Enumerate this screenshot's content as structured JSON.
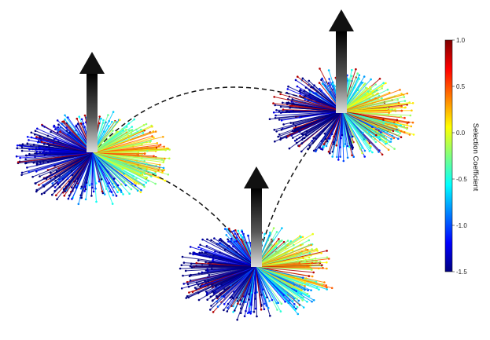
{
  "figure": {
    "clusters": [
      {
        "name": "cluster-left"
      },
      {
        "name": "cluster-top-right"
      },
      {
        "name": "cluster-bottom"
      }
    ],
    "connections": [
      {
        "from": "cluster-left",
        "to": "cluster-top-right"
      },
      {
        "from": "cluster-left",
        "to": "cluster-bottom"
      },
      {
        "from": "cluster-top-right",
        "to": "cluster-bottom"
      }
    ],
    "line_style": "dashed",
    "arrow_color": "#111111"
  },
  "colorbar": {
    "title": "Selection Coefficient",
    "min": -1.5,
    "max": 1.0,
    "ticks": [
      "1.0",
      "0.5",
      "0.0",
      "-0.5",
      "-1.0",
      "-1.5"
    ],
    "tick_values": [
      1.0,
      0.5,
      0.0,
      -0.5,
      -1.0,
      -1.5
    ],
    "colormap": "jet",
    "colors": [
      "#00007f",
      "#0000ff",
      "#007fff",
      "#00ffff",
      "#7fff7f",
      "#ffff00",
      "#ff7f00",
      "#ff0000",
      "#7f0000"
    ]
  }
}
